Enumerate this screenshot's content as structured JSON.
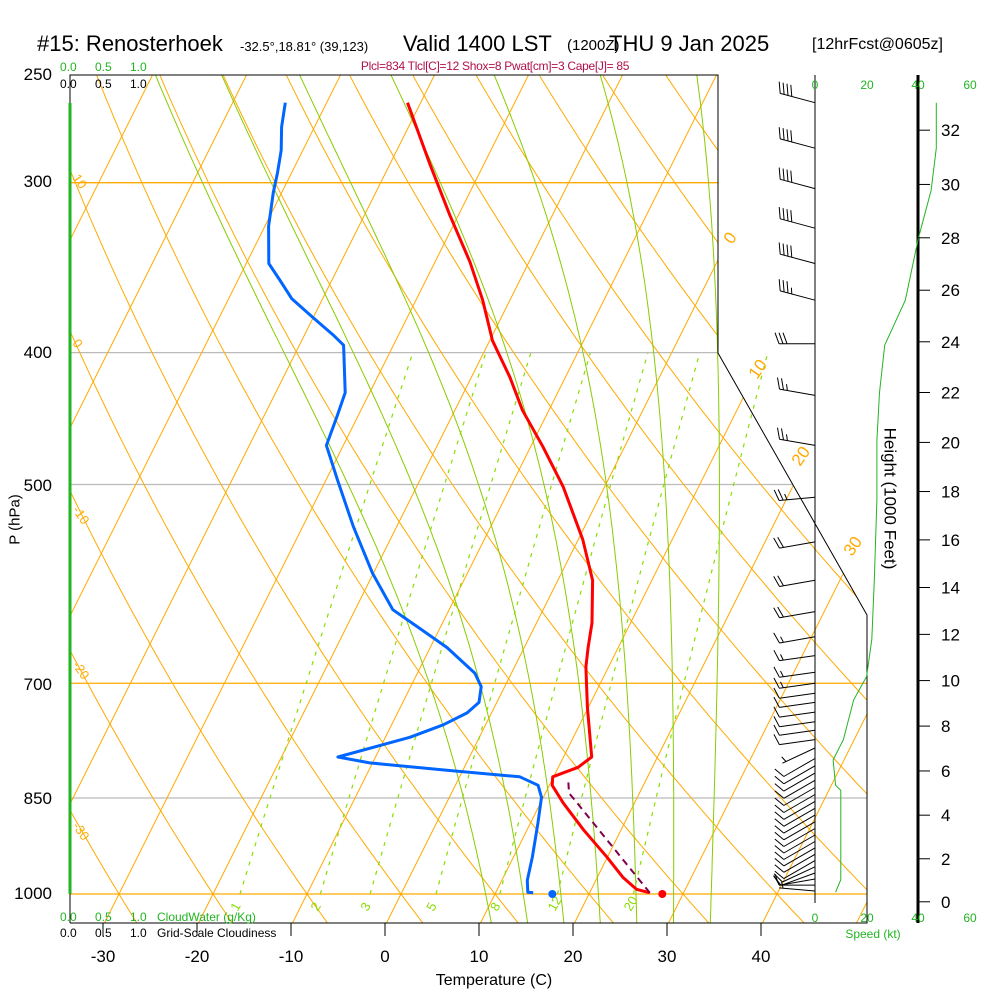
{
  "title": {
    "station": "#15: Renosterhoek",
    "coords": "-32.5°,18.81° (39,123)",
    "valid": "Valid 1400 LST",
    "utc": "(1200Z)",
    "date": "THU 9 Jan 2025",
    "forecast": "[12hrFcst@0605z]"
  },
  "indices": "Plcl=834 Tlcl[C]=12 Shox=8 Pwat[cm]=3 Cape[J]= 85",
  "cloud_scales": {
    "cloudwater_ticks": [
      "0.0",
      "0.5",
      "1.0"
    ],
    "cloudwater_label": "CloudWater (g/Kg)",
    "cloudiness_ticks": [
      "0.0",
      "0.5",
      "1.0"
    ],
    "cloudiness_label": "Grid-Scale Cloudiness"
  },
  "chart_data": {
    "type": "line",
    "subtype": "skew-T log-P sounding",
    "xlabel": "Temperature (C)",
    "ylabel": "P (hPa)",
    "xticks": [
      "-30",
      "-20",
      "-10",
      "0",
      "10",
      "20",
      "30",
      "40"
    ],
    "yticks": [
      "250",
      "300",
      "400",
      "500",
      "700",
      "850",
      "1000"
    ],
    "ylim": [
      1000,
      250
    ],
    "temperature": {
      "p": [
        262,
        291,
        317,
        343,
        366,
        392,
        417,
        441,
        469,
        502,
        549,
        588,
        632,
        659,
        681,
        729,
        793,
        807,
        820,
        832,
        857,
        897,
        939,
        972,
        992,
        998
      ],
      "T": [
        -41.4,
        -35.7,
        -30.9,
        -26.3,
        -22.9,
        -19.7,
        -15.9,
        -12.8,
        -8.7,
        -4.4,
        0.5,
        3.7,
        5.9,
        6.8,
        7.6,
        9.9,
        13.0,
        12.1,
        9.9,
        10.3,
        12.4,
        16.0,
        19.9,
        22.7,
        24.8,
        26.4
      ]
    },
    "dewpoint": {
      "p": [
        262,
        273,
        284,
        295,
        305,
        323,
        344,
        354,
        365,
        377,
        388,
        395,
        428,
        446,
        468,
        496,
        537,
        581,
        618,
        636,
        659,
        688,
        704,
        723,
        736,
        751,
        767,
        793,
        801,
        811,
        820,
        832,
        849,
        887,
        939,
        977,
        997,
        998
      ],
      "T": [
        -54.4,
        -53.5,
        -52.3,
        -51.5,
        -50.9,
        -49.6,
        -47.6,
        -45.5,
        -43.3,
        -40.0,
        -37.0,
        -35.3,
        -32.6,
        -32.2,
        -31.8,
        -28.8,
        -24.6,
        -20.1,
        -16.0,
        -12.5,
        -8.2,
        -3.9,
        -2.5,
        -1.9,
        -2.6,
        -4.5,
        -7.4,
        -14.0,
        -10.3,
        -1.7,
        6.4,
        8.8,
        9.8,
        10.8,
        12.0,
        12.7,
        13.4,
        14.0
      ]
    },
    "parcel": {
      "p": [
        998,
        850,
        843,
        824
      ],
      "T": [
        26.4,
        13.2,
        12.5,
        11.7
      ]
    },
    "surface_temperature": 27.8,
    "surface_dewpoint": 16.1,
    "isotherm_labels": [
      "0",
      "10",
      "20",
      "30"
    ],
    "dry_adiabat_labels": [
      "10",
      "0",
      "-10",
      "-20",
      "-30"
    ],
    "mixing_ratio_lines": [
      "1",
      "2",
      "3",
      "5",
      "8",
      "12",
      "20"
    ],
    "moist_adiabats_thetaw": [
      9,
      13,
      17,
      21,
      25,
      29,
      33
    ],
    "wind_barbs": [
      {
        "p": 262,
        "speed": 40,
        "dir": 285
      },
      {
        "p": 283,
        "speed": 40,
        "dir": 285
      },
      {
        "p": 303,
        "speed": 40,
        "dir": 285
      },
      {
        "p": 324,
        "speed": 40,
        "dir": 285
      },
      {
        "p": 344,
        "speed": 40,
        "dir": 285
      },
      {
        "p": 366,
        "speed": 35,
        "dir": 285
      },
      {
        "p": 394,
        "speed": 30,
        "dir": 270
      },
      {
        "p": 430,
        "speed": 25,
        "dir": 280
      },
      {
        "p": 468,
        "speed": 25,
        "dir": 280
      },
      {
        "p": 511,
        "speed": 25,
        "dir": 265
      },
      {
        "p": 551,
        "speed": 20,
        "dir": 260
      },
      {
        "p": 588,
        "speed": 20,
        "dir": 260
      },
      {
        "p": 620,
        "speed": 20,
        "dir": 260
      },
      {
        "p": 647,
        "speed": 15,
        "dir": 260
      },
      {
        "p": 668,
        "speed": 15,
        "dir": 262
      },
      {
        "p": 687,
        "speed": 15,
        "dir": 262
      },
      {
        "p": 700,
        "speed": 15,
        "dir": 262
      },
      {
        "p": 712,
        "speed": 10,
        "dir": 262
      },
      {
        "p": 723,
        "speed": 10,
        "dir": 262
      },
      {
        "p": 735,
        "speed": 10,
        "dir": 262
      },
      {
        "p": 747,
        "speed": 10,
        "dir": 262
      },
      {
        "p": 758,
        "speed": 10,
        "dir": 262
      },
      {
        "p": 770,
        "speed": 10,
        "dir": 262
      },
      {
        "p": 781,
        "speed": 5,
        "dir": 245
      },
      {
        "p": 795,
        "speed": 10,
        "dir": 240
      },
      {
        "p": 805,
        "speed": 10,
        "dir": 240
      },
      {
        "p": 815,
        "speed": 10,
        "dir": 240
      },
      {
        "p": 825,
        "speed": 10,
        "dir": 240
      },
      {
        "p": 835,
        "speed": 10,
        "dir": 240
      },
      {
        "p": 845,
        "speed": 10,
        "dir": 240
      },
      {
        "p": 855,
        "speed": 10,
        "dir": 240
      },
      {
        "p": 865,
        "speed": 10,
        "dir": 240
      },
      {
        "p": 875,
        "speed": 10,
        "dir": 240
      },
      {
        "p": 885,
        "speed": 10,
        "dir": 240
      },
      {
        "p": 895,
        "speed": 10,
        "dir": 240
      },
      {
        "p": 905,
        "speed": 10,
        "dir": 240
      },
      {
        "p": 915,
        "speed": 10,
        "dir": 240
      },
      {
        "p": 925,
        "speed": 10,
        "dir": 240
      },
      {
        "p": 935,
        "speed": 10,
        "dir": 240
      },
      {
        "p": 945,
        "speed": 10,
        "dir": 240
      },
      {
        "p": 955,
        "speed": 10,
        "dir": 245
      },
      {
        "p": 965,
        "speed": 10,
        "dir": 250
      },
      {
        "p": 975,
        "speed": 10,
        "dir": 260
      },
      {
        "p": 985,
        "speed": 10,
        "dir": 270
      },
      {
        "p": 995,
        "speed": 5,
        "dir": 275
      }
    ],
    "wind_speed_profile": {
      "p": [
        262,
        283,
        304,
        330,
        366,
        395,
        428,
        464,
        513,
        588,
        650,
        692,
        720,
        770,
        797,
        832,
        839,
        976,
        997
      ],
      "speed": [
        47,
        47,
        45,
        40,
        35,
        27,
        25,
        24,
        24,
        23,
        22,
        20,
        15,
        11,
        7,
        8,
        10,
        10,
        8
      ]
    },
    "speed_axis": {
      "ticks": [
        "0",
        "20",
        "40",
        "60"
      ],
      "label": "Speed (kt)"
    },
    "height_axis": {
      "label": "Height (1000 Feet)",
      "ticks": [
        "0",
        "2",
        "4",
        "6",
        "8",
        "10",
        "12",
        "14",
        "16",
        "18",
        "20",
        "22",
        "24",
        "26",
        "28",
        "30",
        "32"
      ]
    },
    "colors": {
      "temperature": "#ff0000",
      "dewpoint": "#0066ff",
      "parcel": "#800050",
      "grid": "#ffaa00",
      "moist_adiabat": "#88cc00",
      "mixing_ratio": "#88dd00",
      "wind_speed": "#22b422",
      "indices": "#b0104a"
    }
  }
}
